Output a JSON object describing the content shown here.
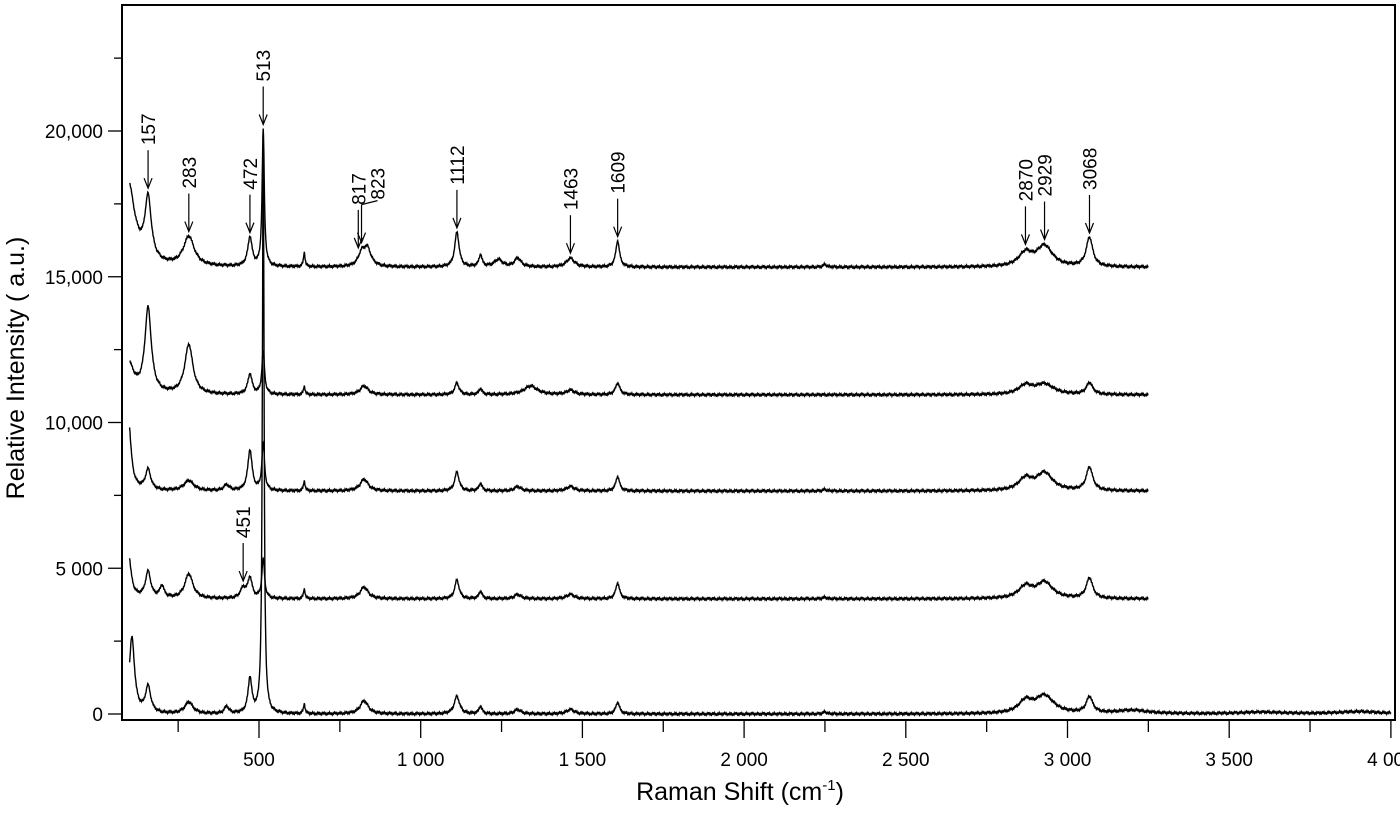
{
  "chart_data": {
    "type": "line",
    "xlabel": "Raman Shift (cm",
    "xlabel_sup": "-1",
    "xlabel_end": ")",
    "ylabel": "Relative Intensity ( a.u.)",
    "xlim": [
      76,
      4012
    ],
    "ylim": [
      -200,
      24300
    ],
    "grid": false,
    "x_ticks": [
      {
        "v": 500,
        "label": "500"
      },
      {
        "v": 1000,
        "label": "1 000"
      },
      {
        "v": 1500,
        "label": "1 500"
      },
      {
        "v": 2000,
        "label": "2 000"
      },
      {
        "v": 2500,
        "label": "2 500"
      },
      {
        "v": 3000,
        "label": "3 000"
      },
      {
        "v": 3500,
        "label": "3 500"
      },
      {
        "v": 4000,
        "label": "4 000"
      }
    ],
    "y_ticks": [
      {
        "v": 0,
        "label": "0"
      },
      {
        "v": 5000,
        "label": "5 000"
      },
      {
        "v": 10000,
        "label": "10,000"
      },
      {
        "v": 15000,
        "label": "15,000"
      },
      {
        "v": 20000,
        "label": "20,000"
      }
    ],
    "series": [
      {
        "offset": 15330,
        "x_range": [
          100,
          3250
        ],
        "peaks": [
          [
            95,
            2900,
            25
          ],
          [
            157,
            2100,
            12
          ],
          [
            283,
            1000,
            20
          ],
          [
            472,
            1000,
            8
          ],
          [
            513,
            4700,
            4
          ],
          [
            640,
            500,
            3
          ],
          [
            817,
            400,
            12
          ],
          [
            835,
            600,
            14
          ],
          [
            1112,
            1200,
            8
          ],
          [
            1185,
            400,
            6
          ],
          [
            1240,
            250,
            15
          ],
          [
            1300,
            300,
            12
          ],
          [
            1463,
            300,
            15
          ],
          [
            1609,
            900,
            7
          ],
          [
            2250,
            100,
            6
          ],
          [
            2870,
            450,
            25
          ],
          [
            2929,
            700,
            30
          ],
          [
            3068,
            1000,
            12
          ]
        ]
      },
      {
        "offset": 10950,
        "x_range": [
          100,
          3250
        ],
        "peaks": [
          [
            95,
            1100,
            20
          ],
          [
            157,
            2900,
            12
          ],
          [
            283,
            1700,
            15
          ],
          [
            472,
            700,
            8
          ],
          [
            513,
            1450,
            5
          ],
          [
            640,
            300,
            3
          ],
          [
            825,
            300,
            15
          ],
          [
            1112,
            400,
            8
          ],
          [
            1185,
            200,
            6
          ],
          [
            1340,
            300,
            25
          ],
          [
            1463,
            150,
            15
          ],
          [
            1609,
            400,
            8
          ],
          [
            2870,
            300,
            25
          ],
          [
            2929,
            350,
            35
          ],
          [
            3068,
            400,
            12
          ]
        ]
      },
      {
        "offset": 7650,
        "x_range": [
          100,
          3250
        ],
        "peaks": [
          [
            95,
            2700,
            10
          ],
          [
            157,
            700,
            10
          ],
          [
            283,
            350,
            18
          ],
          [
            400,
            200,
            10
          ],
          [
            472,
            1400,
            8
          ],
          [
            513,
            1600,
            5
          ],
          [
            640,
            350,
            3
          ],
          [
            825,
            400,
            15
          ],
          [
            1112,
            650,
            8
          ],
          [
            1185,
            250,
            6
          ],
          [
            1300,
            150,
            12
          ],
          [
            1463,
            150,
            15
          ],
          [
            1609,
            500,
            7
          ],
          [
            2250,
            60,
            6
          ],
          [
            2870,
            400,
            25
          ],
          [
            2929,
            600,
            30
          ],
          [
            3068,
            800,
            12
          ]
        ]
      },
      {
        "offset": 3950,
        "x_range": [
          100,
          3250
        ],
        "peaks": [
          [
            95,
            1700,
            10
          ],
          [
            157,
            900,
            10
          ],
          [
            200,
            400,
            8
          ],
          [
            283,
            850,
            15
          ],
          [
            451,
            350,
            10
          ],
          [
            472,
            700,
            8
          ],
          [
            513,
            1350,
            5
          ],
          [
            640,
            350,
            3
          ],
          [
            825,
            400,
            15
          ],
          [
            1112,
            650,
            8
          ],
          [
            1185,
            250,
            6
          ],
          [
            1300,
            150,
            12
          ],
          [
            1463,
            150,
            15
          ],
          [
            1609,
            550,
            7
          ],
          [
            2250,
            60,
            6
          ],
          [
            2870,
            400,
            25
          ],
          [
            2929,
            550,
            30
          ],
          [
            3068,
            700,
            12
          ]
        ]
      },
      {
        "offset": 0,
        "x_range": [
          100,
          4000
        ],
        "peaks": [
          [
            107,
            2600,
            10
          ],
          [
            157,
            900,
            10
          ],
          [
            283,
            400,
            15
          ],
          [
            400,
            250,
            8
          ],
          [
            472,
            1200,
            7
          ],
          [
            513,
            20000,
            3
          ],
          [
            640,
            350,
            3
          ],
          [
            825,
            450,
            15
          ],
          [
            1112,
            600,
            10
          ],
          [
            1185,
            250,
            6
          ],
          [
            1300,
            150,
            12
          ],
          [
            1463,
            150,
            15
          ],
          [
            1609,
            400,
            7
          ],
          [
            2250,
            80,
            6
          ],
          [
            2870,
            400,
            25
          ],
          [
            2929,
            600,
            35
          ],
          [
            3068,
            550,
            12
          ],
          [
            3200,
            120,
            60
          ],
          [
            3600,
            60,
            80
          ],
          [
            3900,
            80,
            80
          ]
        ]
      }
    ],
    "annotations": [
      {
        "label": "157",
        "x": 157,
        "series": 0
      },
      {
        "label": "283",
        "x": 283,
        "series": 0
      },
      {
        "label": "472",
        "x": 472,
        "series": 0
      },
      {
        "label": "513",
        "x": 513,
        "series": 0
      },
      {
        "label": "817",
        "x": 807,
        "series": 0
      },
      {
        "label": "823",
        "x": 817,
        "series": 0
      },
      {
        "label": "1112",
        "x": 1112,
        "series": 0
      },
      {
        "label": "1463",
        "x": 1463,
        "series": 0
      },
      {
        "label": "1609",
        "x": 1609,
        "series": 0
      },
      {
        "label": "2870",
        "x": 2870,
        "series": 0
      },
      {
        "label": "2929",
        "x": 2929,
        "series": 0
      },
      {
        "label": "3068",
        "x": 3068,
        "series": 0
      },
      {
        "label": "451",
        "x": 451,
        "series": 3
      }
    ]
  }
}
